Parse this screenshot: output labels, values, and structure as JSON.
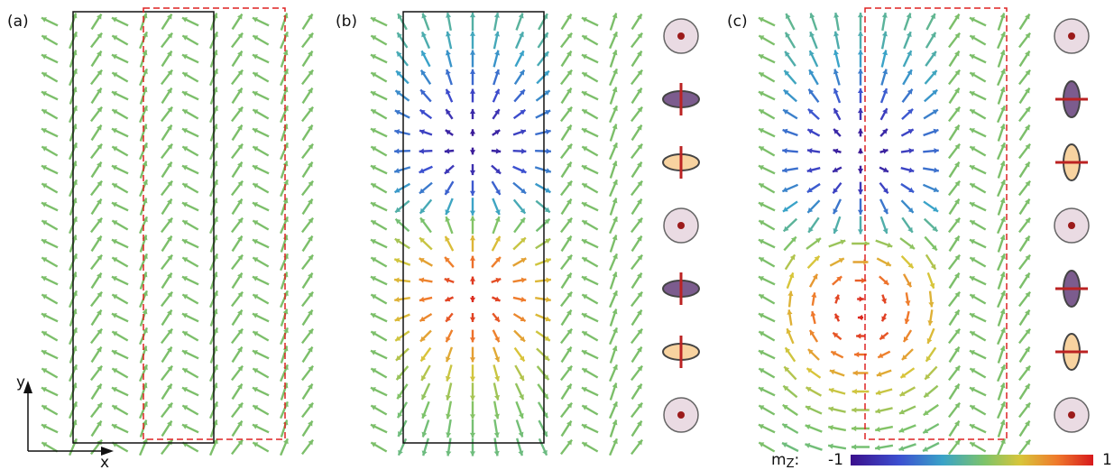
{
  "panels": [
    {
      "label": "(a)"
    },
    {
      "label": "(b)"
    },
    {
      "label": "(c)"
    }
  ],
  "axes": {
    "y": "y",
    "x": "x"
  },
  "colorbar": {
    "label": "m",
    "subscript": "Z",
    "separator": ":",
    "range": [
      -1,
      1
    ],
    "ticks": [
      -1,
      1
    ]
  }
}
